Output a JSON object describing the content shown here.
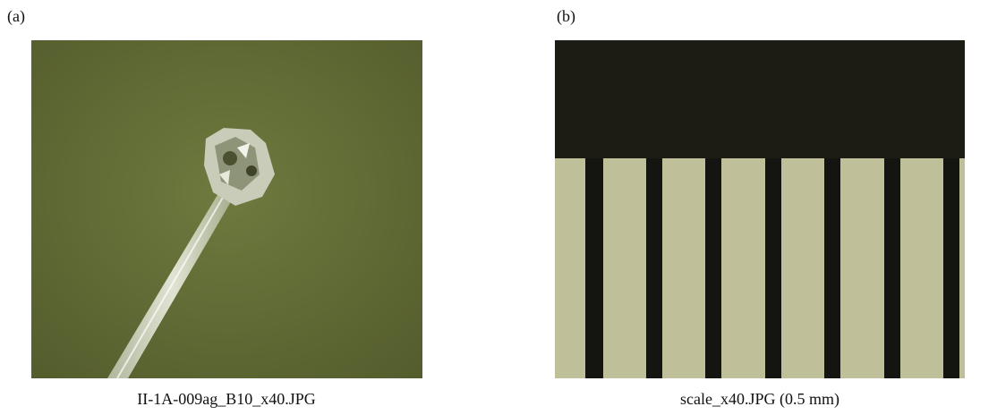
{
  "panels": [
    {
      "label": "(a)",
      "caption": "II-1A-009ag_B10_x40.JPG"
    },
    {
      "label": "(b)",
      "caption": "scale_x40.JPG (0.5 mm)"
    }
  ]
}
